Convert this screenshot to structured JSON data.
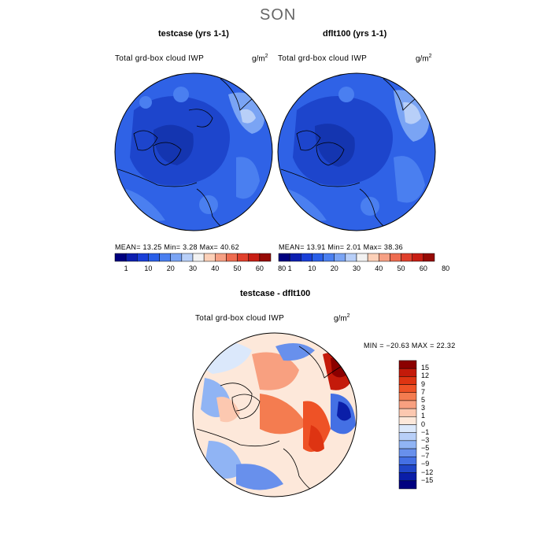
{
  "figure": {
    "season": "SON"
  },
  "panels": [
    {
      "title": "testcase (yrs 1-1)",
      "variable": "Total grd-box cloud IWP",
      "units_base": "g/m",
      "units_exp": "2",
      "stats": "MEAN=  13.25   Min=    3.28   Max=   40.62"
    },
    {
      "title": "dflt100 (yrs 1-1)",
      "variable": "Total grd-box cloud IWP",
      "units_base": "g/m",
      "units_exp": "2",
      "stats": "MEAN=  13.91   Min=    2.01   Max=   38.36"
    }
  ],
  "shared_colorbar": {
    "ticks": [
      "1",
      "10",
      "20",
      "30",
      "40",
      "50",
      "60",
      "80"
    ],
    "colors": [
      "#00007f",
      "#0d1fb0",
      "#1a3fd8",
      "#2a5fe8",
      "#4a7ff0",
      "#7aa4f4",
      "#b8cff8",
      "#f2f2f2",
      "#fcd0b8",
      "#f6a084",
      "#ee6c50",
      "#e0402c",
      "#c81e14",
      "#960a05"
    ]
  },
  "difference": {
    "title": "testcase - dflt100",
    "variable": "Total grd-box cloud IWP",
    "units_base": "g/m",
    "units_exp": "2",
    "minmax": "MIN = −20.63 MAX =  22.32",
    "levels": [
      "15",
      "12",
      "9",
      "7",
      "5",
      "3",
      "1",
      "0",
      "−1",
      "−3",
      "−5",
      "−7",
      "−9",
      "−12",
      "−15"
    ],
    "colors": [
      "#8b0000",
      "#c41a0a",
      "#de3412",
      "#ee5226",
      "#f47c50",
      "#f8a080",
      "#fcc8b0",
      "#fde8da",
      "#dbe8fb",
      "#b8cff8",
      "#90b4f4",
      "#6890ec",
      "#4470e4",
      "#2046c8",
      "#0a1ea8",
      "#000080"
    ]
  }
}
